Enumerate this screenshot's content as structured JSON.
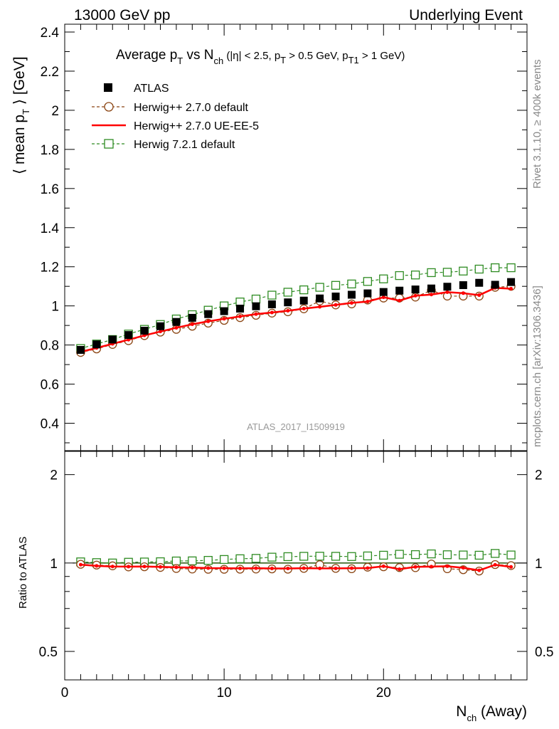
{
  "header": {
    "left": "13000 GeV pp",
    "right": "Underlying Event"
  },
  "side": {
    "rivet": "Rivet 3.1.10, ≥ 400k events",
    "source": "mcplots.cern.ch [arXiv:1306.3436]"
  },
  "analysis_id": "ATLAS_2017_I1509919",
  "colors": {
    "atlas": "#000000",
    "herwig_default": "#8b4513",
    "herwig_ueee5": "#ff0000",
    "herwig72": "#2e8b22",
    "band": "#b4ff7f"
  },
  "chart_data": [
    {
      "type": "scatter",
      "title": "Average pT vs Nch (|η| < 2.5, pT > 0.5 GeV, pT1 > 1 GeV)",
      "title_parts": {
        "a": "Average p",
        "a_sub": "T",
        "b": " vs N",
        "b_sub": "ch",
        "c": " (|η| < 2.5, p",
        "c_sub": "T",
        "d": " > 0.5 GeV, p",
        "d_sub": "T",
        "e": " > 1 GeV, p",
        "e_sub": "T1",
        "f": " > 1 GeV)"
      },
      "ylabel": "⟨ mean pT ⟩ [GeV]",
      "ylabel_parts": {
        "a": "⟨ mean p",
        "sub": "T",
        "b": " ⟩ [GeV]"
      },
      "xlim": [
        0,
        29
      ],
      "ylim": [
        0.26,
        2.44
      ],
      "yticks": [
        "0.4",
        "0.6",
        "0.8",
        "1",
        "1.2",
        "1.4",
        "1.6",
        "1.8",
        "2",
        "2.2",
        "2.4"
      ],
      "legend_position": "top-left",
      "x": [
        1,
        2,
        3,
        4,
        5,
        6,
        7,
        8,
        9,
        10,
        11,
        12,
        13,
        14,
        15,
        16,
        17,
        18,
        19,
        20,
        21,
        22,
        23,
        24,
        25,
        26,
        27,
        28
      ],
      "series": [
        {
          "name": "ATLAS",
          "style": "marker-square",
          "values": [
            0.775,
            0.803,
            0.828,
            0.851,
            0.873,
            0.896,
            0.918,
            0.939,
            0.958,
            0.973,
            0.986,
            0.998,
            1.008,
            1.018,
            1.027,
            1.038,
            1.048,
            1.057,
            1.064,
            1.071,
            1.078,
            1.084,
            1.089,
            1.098,
            1.106,
            1.118,
            1.108,
            1.122
          ]
        },
        {
          "name": "Herwig++ 2.7.0 default",
          "style": "dashed-circle",
          "values": [
            0.762,
            0.78,
            0.803,
            0.822,
            0.848,
            0.866,
            0.88,
            0.896,
            0.912,
            0.926,
            0.94,
            0.952,
            0.963,
            0.97,
            0.985,
            1.025,
            1.005,
            1.01,
            1.03,
            1.04,
            1.04,
            1.045,
            1.08,
            1.05,
            1.05,
            1.05,
            1.095,
            1.1
          ]
        },
        {
          "name": "Herwig++ 2.7.0 UE-EE-5",
          "style": "solid-line",
          "values": [
            0.765,
            0.785,
            0.806,
            0.827,
            0.849,
            0.869,
            0.888,
            0.906,
            0.921,
            0.934,
            0.946,
            0.958,
            0.966,
            0.975,
            0.986,
            0.995,
            1.005,
            1.015,
            1.022,
            1.044,
            1.027,
            1.052,
            1.058,
            1.07,
            1.065,
            1.055,
            1.092,
            1.088
          ]
        },
        {
          "name": "Herwig 7.2.1 default",
          "style": "dashed-open-square",
          "values": [
            0.782,
            0.805,
            0.828,
            0.856,
            0.88,
            0.905,
            0.933,
            0.955,
            0.978,
            1.0,
            1.02,
            1.035,
            1.055,
            1.07,
            1.082,
            1.095,
            1.105,
            1.112,
            1.125,
            1.138,
            1.155,
            1.158,
            1.17,
            1.172,
            1.178,
            1.188,
            1.195,
            1.195
          ]
        }
      ]
    },
    {
      "type": "scatter",
      "ylabel": "Ratio to ATLAS",
      "xlabel": "Nch (Away)",
      "xlabel_parts": {
        "a": "N",
        "sub": "ch",
        "b": " (Away)"
      },
      "xlim": [
        0,
        29
      ],
      "xticks": [
        "0",
        "10",
        "20"
      ],
      "ylim": [
        0.4,
        2.4
      ],
      "yscale": "log",
      "yticks": [
        "0.5",
        "1",
        "2"
      ],
      "series": [
        {
          "name": "Herwig++ 2.7.0 default",
          "values": [
            0.99,
            0.984,
            0.978,
            0.97,
            0.971,
            0.966,
            0.958,
            0.954,
            0.952,
            0.952,
            0.953,
            0.954,
            0.955,
            0.953,
            0.959,
            0.987,
            0.959,
            0.956,
            0.968,
            0.971,
            0.965,
            0.964,
            0.992,
            0.956,
            0.949,
            0.939,
            0.988,
            0.98
          ]
        },
        {
          "name": "Herwig++ 2.7.0 UE-EE-5",
          "values": [
            0.987,
            0.978,
            0.973,
            0.972,
            0.973,
            0.97,
            0.967,
            0.965,
            0.961,
            0.96,
            0.959,
            0.96,
            0.958,
            0.958,
            0.96,
            0.959,
            0.959,
            0.96,
            0.961,
            0.975,
            0.953,
            0.97,
            0.972,
            0.975,
            0.963,
            0.944,
            0.986,
            0.97
          ]
        },
        {
          "name": "Herwig 7.2.1 default",
          "values": [
            1.009,
            1.003,
            1.0,
            1.006,
            1.008,
            1.01,
            1.016,
            1.017,
            1.021,
            1.028,
            1.034,
            1.037,
            1.047,
            1.051,
            1.054,
            1.055,
            1.054,
            1.052,
            1.057,
            1.063,
            1.071,
            1.068,
            1.074,
            1.067,
            1.065,
            1.063,
            1.078,
            1.065
          ]
        }
      ]
    }
  ]
}
